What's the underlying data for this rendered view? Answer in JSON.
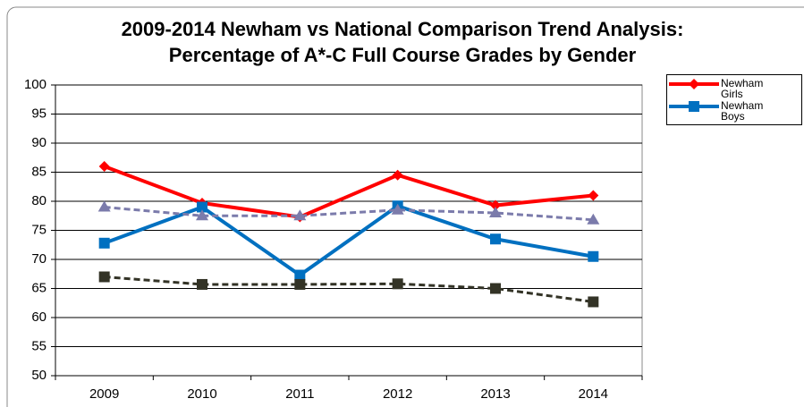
{
  "chart_data": {
    "type": "line",
    "title": "2009-2014 Newham vs National Comparison Trend Analysis: Percentage of A*-C Full Course Grades by Gender",
    "categories": [
      "2009",
      "2010",
      "2011",
      "2012",
      "2013",
      "2014"
    ],
    "series": [
      {
        "name": "Newham Girls",
        "color": "#ff0000",
        "marker": "diamond",
        "dashed": false,
        "values": [
          86,
          79.7,
          77.3,
          84.5,
          79.3,
          81
        ]
      },
      {
        "name": "Newham Boys",
        "color": "#0070c0",
        "marker": "square",
        "dashed": false,
        "values": [
          72.8,
          79,
          67.3,
          79.2,
          73.5,
          70.5
        ]
      },
      {
        "color": "#7b7bab",
        "marker": "triangle",
        "dashed": true,
        "values": [
          79,
          77.5,
          77.5,
          78.5,
          78,
          76.8
        ]
      },
      {
        "color": "#333326",
        "marker": "square",
        "dashed": true,
        "values": [
          67,
          65.7,
          65.7,
          65.8,
          65,
          62.7
        ]
      }
    ],
    "ylim": [
      50,
      100
    ],
    "yticks": [
      50,
      55,
      60,
      65,
      70,
      75,
      80,
      85,
      90,
      95,
      100
    ],
    "grid": true
  }
}
